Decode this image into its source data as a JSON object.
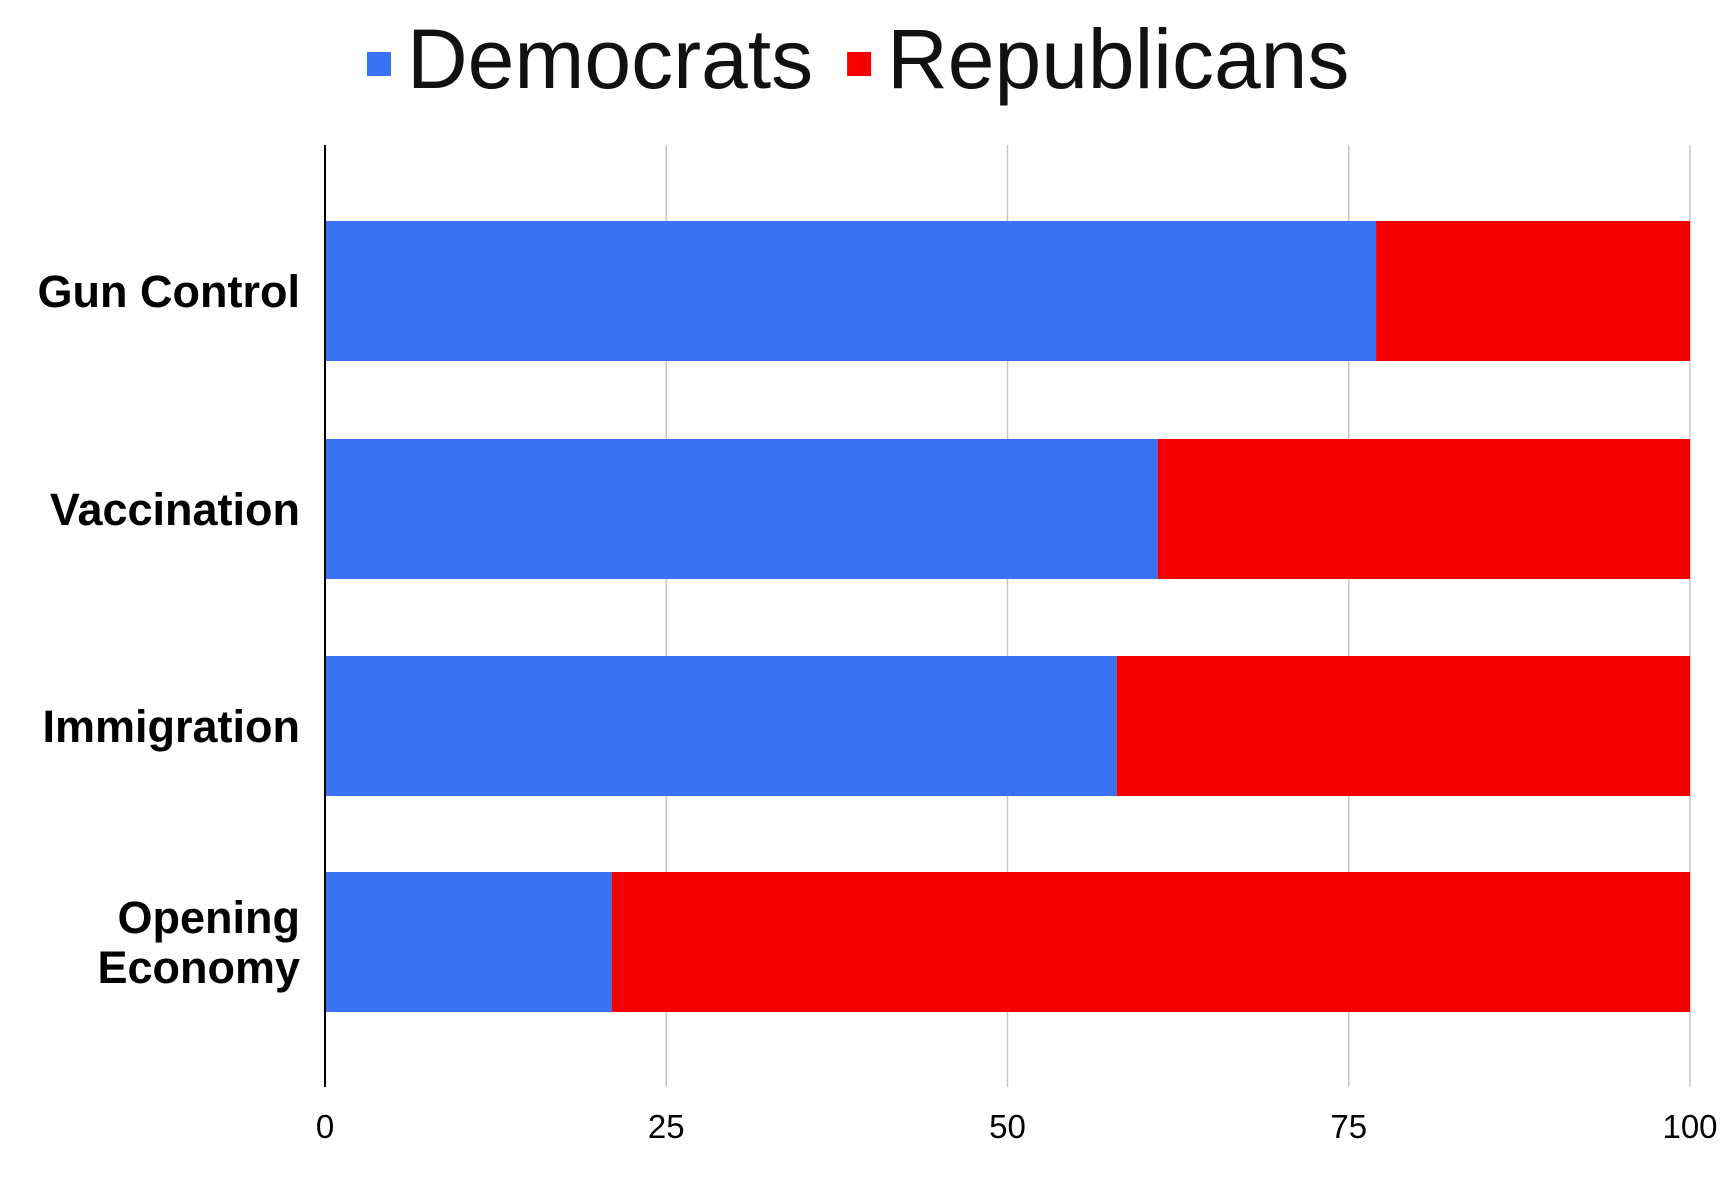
{
  "chart_data": {
    "type": "bar",
    "orientation": "horizontal",
    "stacked": true,
    "title": "",
    "xlabel": "",
    "ylabel": "",
    "categories": [
      [
        "Gun Control"
      ],
      [
        "Vaccination"
      ],
      [
        "Immigration"
      ],
      [
        "Opening",
        "Economy"
      ]
    ],
    "series": [
      {
        "name": "Democrats",
        "color": "#3a72f4",
        "values": [
          77,
          61,
          58,
          21
        ]
      },
      {
        "name": "Republicans",
        "color": "#f70000",
        "values": [
          23,
          39,
          42,
          79
        ]
      }
    ],
    "xlim": [
      0,
      100
    ],
    "xticks": [
      0,
      25,
      50,
      75,
      100
    ],
    "grid": "vertical",
    "legend_position": "top-center"
  }
}
